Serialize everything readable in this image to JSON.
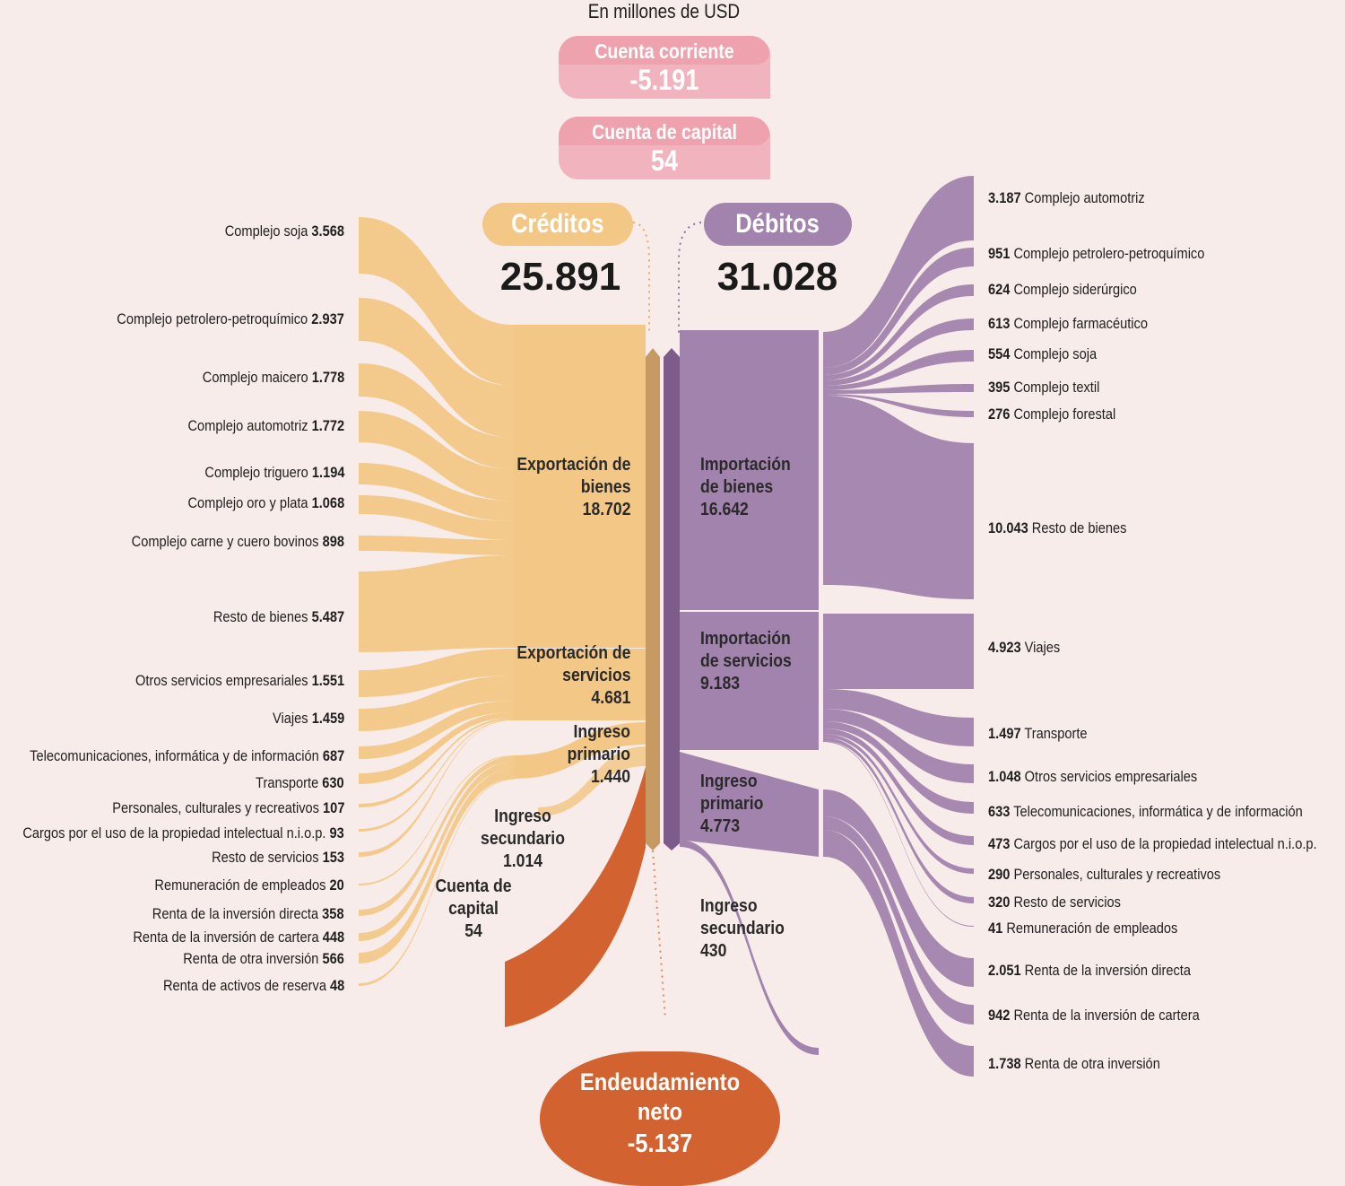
{
  "subtitle": "En millones de USD",
  "cuenta_corriente": {
    "label": "Cuenta corriente",
    "value": "-5.191"
  },
  "cuenta_capital_box": {
    "label": "Cuenta de capital",
    "value": "54"
  },
  "creditos": {
    "label": "Créditos",
    "total": "25.891"
  },
  "debitos": {
    "label": "Débitos",
    "total": "31.028"
  },
  "endeudamiento": {
    "line1": "Endeudamiento",
    "line2": "neto",
    "value": "-5.137"
  },
  "colors": {
    "background": "#f8ecea",
    "credit": "#f3c887",
    "credit_bar": "#c79a63",
    "debit": "#a283ad",
    "debit_bar": "#7d5c8c",
    "net": "#d2622f",
    "box": "#f1b3bd"
  },
  "credit_groups": [
    {
      "lines": [
        "Exportación de",
        "bienes",
        "18.702"
      ]
    },
    {
      "lines": [
        "Exportación de",
        "servicios",
        "4.681"
      ]
    },
    {
      "lines": [
        "Ingreso",
        "primario",
        "1.440"
      ]
    },
    {
      "lines": [
        "Ingreso",
        "secundario",
        "1.014"
      ]
    },
    {
      "lines": [
        "Cuenta de",
        "capital",
        "54"
      ]
    }
  ],
  "debit_groups": [
    {
      "lines": [
        "Importación",
        "de bienes",
        "16.642"
      ]
    },
    {
      "lines": [
        "Importación",
        "de servicios",
        "9.183"
      ]
    },
    {
      "lines": [
        "Ingreso",
        "primario",
        "4.773"
      ]
    },
    {
      "lines": [
        "Ingreso",
        "secundario",
        "430"
      ]
    }
  ],
  "credit_items": [
    {
      "name": "Complejo soja",
      "value": "3.568"
    },
    {
      "name": "Complejo petrolero-petroquímico",
      "value": "2.937"
    },
    {
      "name": "Complejo maicero",
      "value": "1.778"
    },
    {
      "name": "Complejo automotriz",
      "value": "1.772"
    },
    {
      "name": "Complejo triguero",
      "value": "1.194"
    },
    {
      "name": "Complejo oro y plata",
      "value": "1.068"
    },
    {
      "name": "Complejo carne y cuero bovinos",
      "value": "898"
    },
    {
      "name": "Resto de bienes",
      "value": "5.487"
    },
    {
      "name": "Otros servicios empresariales",
      "value": "1.551"
    },
    {
      "name": "Viajes",
      "value": "1.459"
    },
    {
      "name": "Telecomunicaciones, informática y de información",
      "value": "687"
    },
    {
      "name": "Transporte",
      "value": "630"
    },
    {
      "name": "Personales, culturales y recreativos",
      "value": "107"
    },
    {
      "name": "Cargos por el uso de la propiedad intelectual n.i.o.p.",
      "value": "93"
    },
    {
      "name": "Resto de servicios",
      "value": "153"
    },
    {
      "name": "Remuneración de empleados",
      "value": "20"
    },
    {
      "name": "Renta de la inversión directa",
      "value": "358"
    },
    {
      "name": "Renta de la inversión de cartera",
      "value": "448"
    },
    {
      "name": "Renta de otra inversión",
      "value": "566"
    },
    {
      "name": "Renta de activos de reserva",
      "value": "48"
    }
  ],
  "debit_items": [
    {
      "value": "3.187",
      "name": "Complejo automotriz"
    },
    {
      "value": "951",
      "name": "Complejo petrolero-petroquímico"
    },
    {
      "value": "624",
      "name": "Complejo siderúrgico"
    },
    {
      "value": "613",
      "name": "Complejo farmacéutico"
    },
    {
      "value": "554",
      "name": "Complejo soja"
    },
    {
      "value": "395",
      "name": "Complejo textil"
    },
    {
      "value": "276",
      "name": "Complejo forestal"
    },
    {
      "value": "10.043",
      "name": "Resto de bienes"
    },
    {
      "value": "4.923",
      "name": "Viajes"
    },
    {
      "value": "1.497",
      "name": "Transporte"
    },
    {
      "value": "1.048",
      "name": "Otros servicios empresariales"
    },
    {
      "value": "633",
      "name": "Telecomunicaciones, informática y de información"
    },
    {
      "value": "473",
      "name": "Cargos por el uso de la propiedad intelectual n.i.o.p."
    },
    {
      "value": "290",
      "name": "Personales, culturales y recreativos"
    },
    {
      "value": "320",
      "name": "Resto de servicios"
    },
    {
      "value": "41",
      "name": "Remuneración de empleados"
    },
    {
      "value": "2.051",
      "name": "Renta de la inversión directa"
    },
    {
      "value": "942",
      "name": "Renta de la inversión de cartera"
    },
    {
      "value": "1.738",
      "name": "Renta de otra inversión"
    }
  ]
}
